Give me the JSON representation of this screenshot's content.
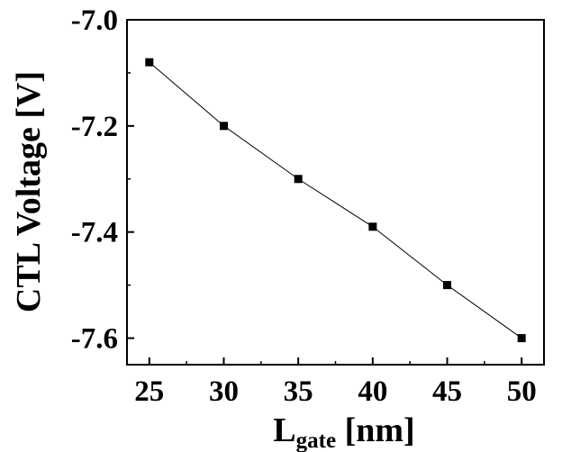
{
  "chart_data": {
    "type": "line",
    "xlabel": {
      "main": "L",
      "sub": "gate",
      "unit": " [nm]"
    },
    "ylabel": "CTL Voltage [V]",
    "xlim": [
      23.5,
      51.5
    ],
    "ylim": [
      -7.65,
      -7.0
    ],
    "xticks": [
      25,
      30,
      35,
      40,
      45,
      50
    ],
    "yticks": [
      -7.0,
      -7.2,
      -7.4,
      -7.6
    ],
    "xtick_labels": [
      "25",
      "30",
      "35",
      "40",
      "45",
      "50"
    ],
    "ytick_labels": [
      "-7.0",
      "-7.2",
      "-7.4",
      "-7.6"
    ],
    "series": [
      {
        "x": [
          25,
          30,
          35,
          40,
          45,
          50
        ],
        "y": [
          -7.08,
          -7.2,
          -7.3,
          -7.39,
          -7.5,
          -7.6
        ],
        "marker": "square",
        "color": "#000000"
      }
    ],
    "grid": false,
    "legend": "none"
  }
}
